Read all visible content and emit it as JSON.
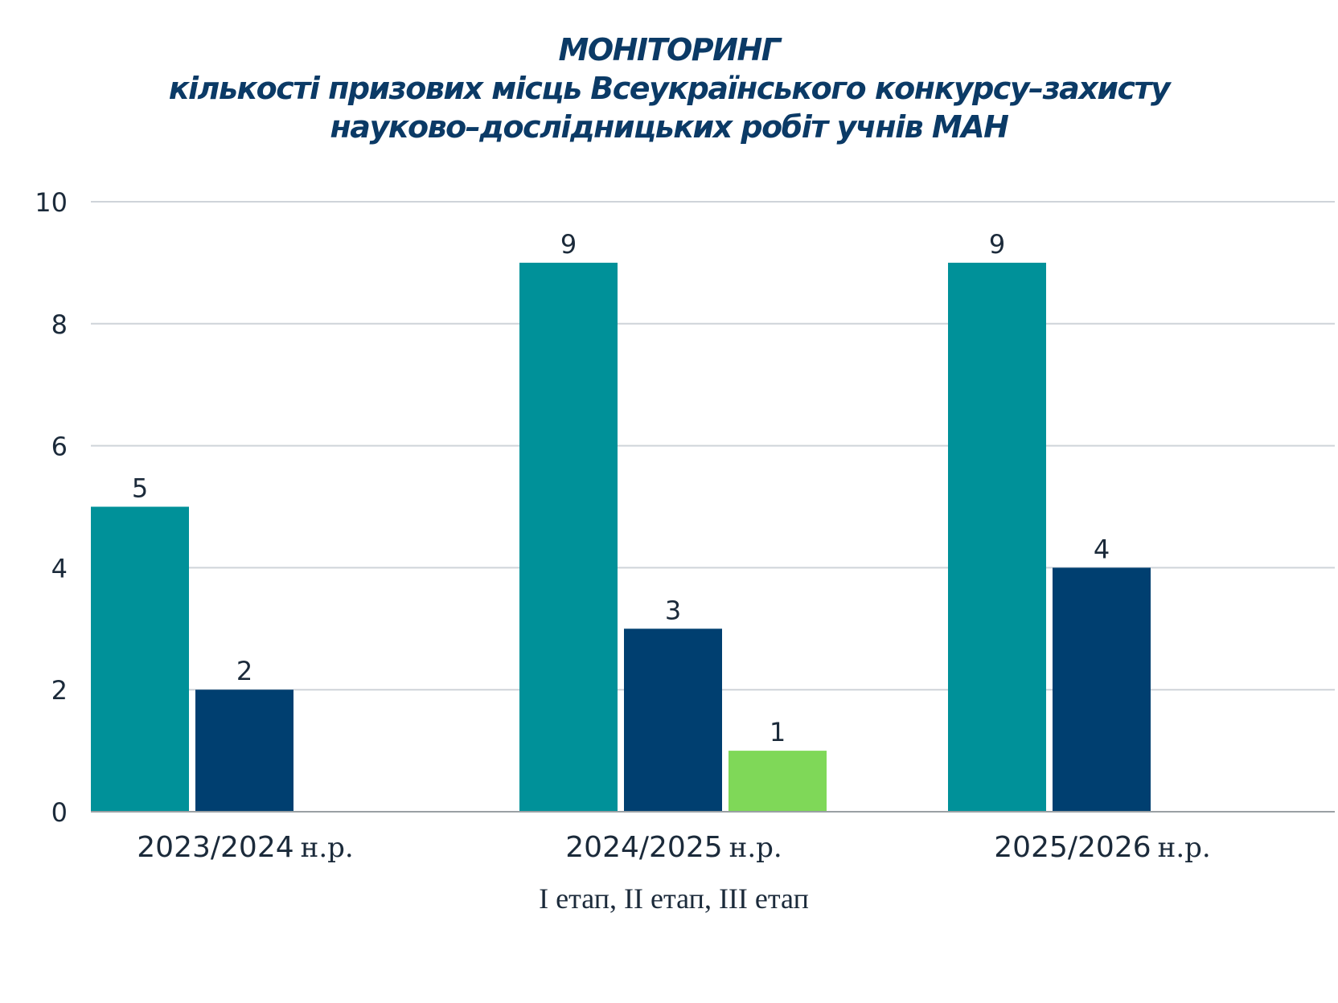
{
  "chart_data": {
    "type": "bar",
    "title": [
      "МОНІТОРИНГ",
      "кількості призових місць Всеукраїнського конкурсу–захисту",
      "науково–дослідницьких робіт учнів МАН"
    ],
    "categories": [
      {
        "year": "2023/2024",
        "suffix": "н.р."
      },
      {
        "year": "2024/2025",
        "suffix": "н.р."
      },
      {
        "year": "2025/2026",
        "suffix": "н.р."
      }
    ],
    "series": [
      {
        "name": "I етап",
        "color": "#009199",
        "values": [
          5,
          9,
          9
        ]
      },
      {
        "name": "II етап",
        "color": "#003f70",
        "values": [
          2,
          3,
          4
        ]
      },
      {
        "name": "III етап",
        "color": "#7fd858",
        "values": [
          null,
          1,
          null
        ]
      }
    ],
    "xlabel": "I етап, II етап, III етап",
    "ylabel": "",
    "ylim": [
      0,
      10
    ],
    "yticks": [
      0,
      2,
      4,
      6,
      8,
      10
    ],
    "grid": true,
    "data_labels": true,
    "legend": "none"
  }
}
